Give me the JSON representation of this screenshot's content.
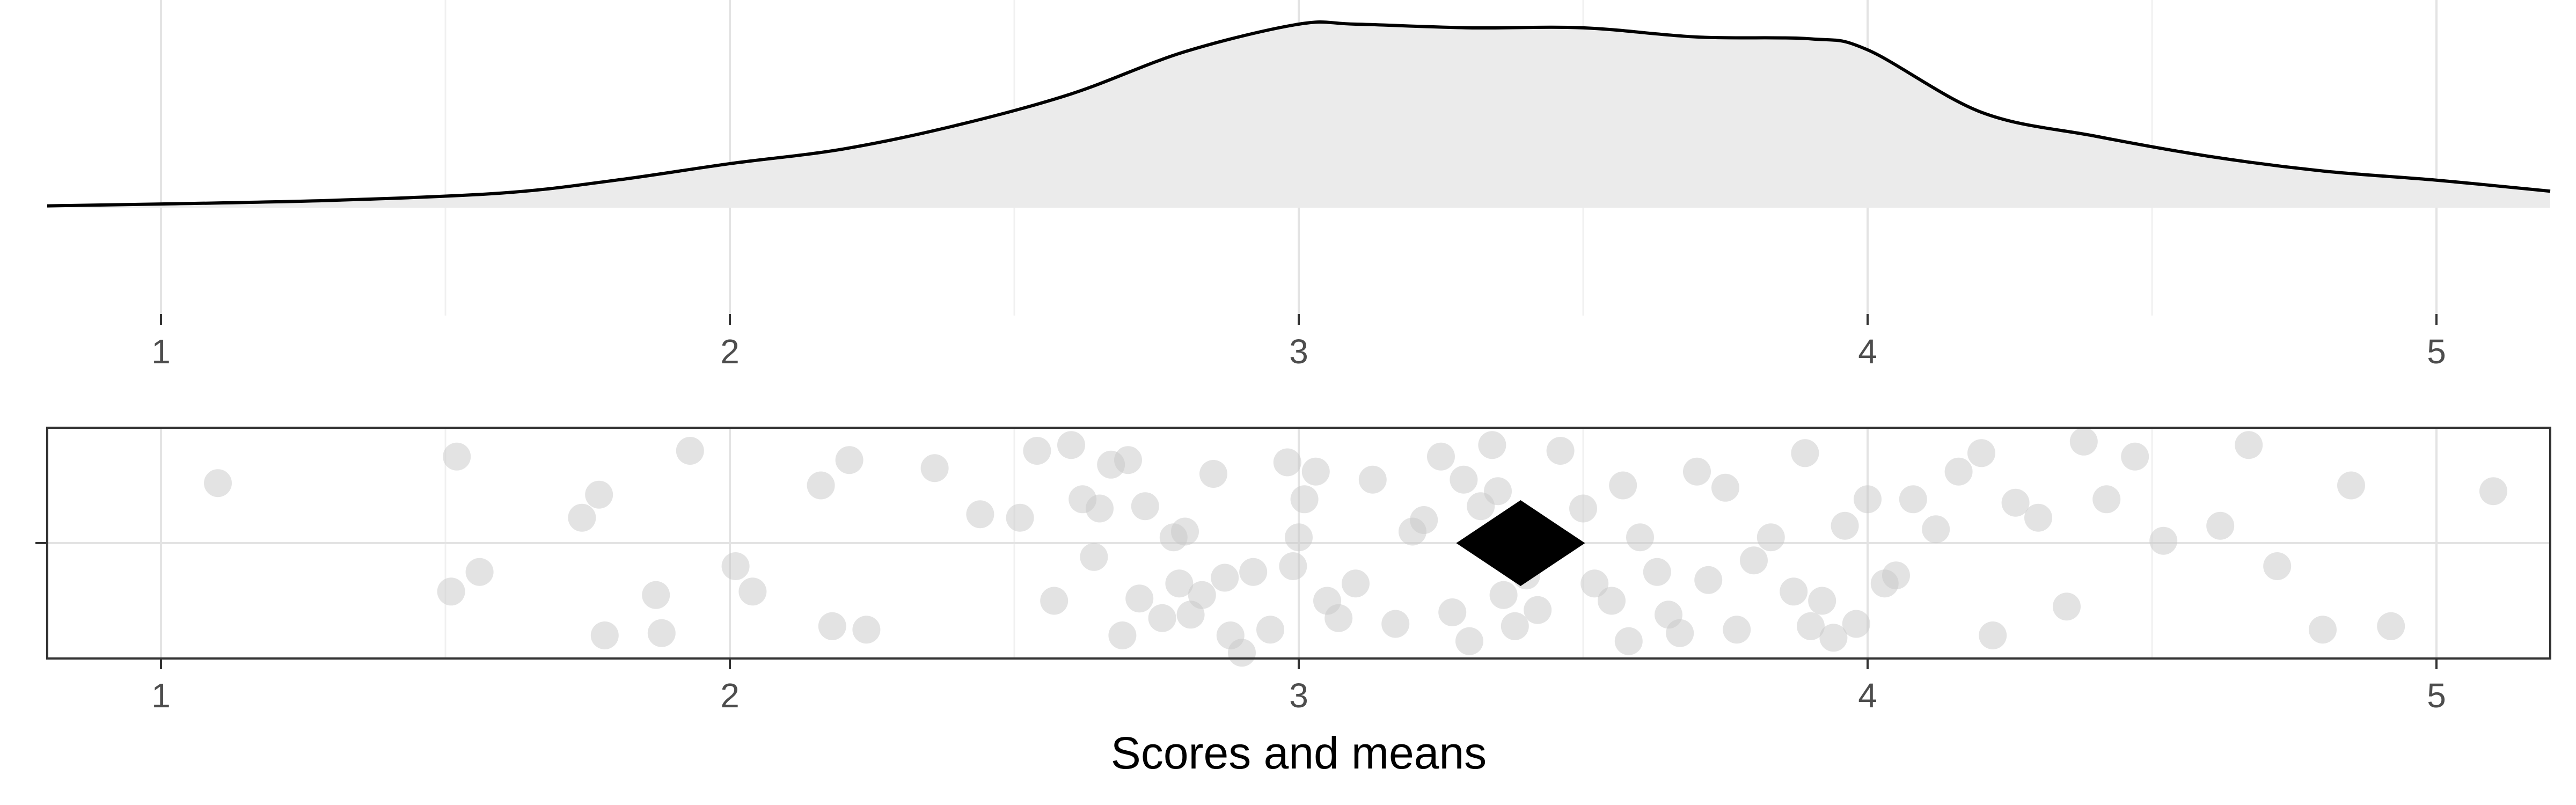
{
  "colors": {
    "density_fill": "#ebebeb",
    "density_line": "#000000",
    "point": "#c8c8c8",
    "mean_marker": "#000000",
    "grid_major": "#e3e3e3",
    "grid_minor": "#f0f0f0",
    "panel_border": "#333333",
    "tick_text": "#4d4d4d"
  },
  "chart_data": [
    {
      "type": "area",
      "xlim": [
        0.8,
        5.2
      ],
      "ylim": [
        0,
        1
      ],
      "grid": true,
      "xticks": [
        "1",
        "2",
        "3",
        "4",
        "5"
      ],
      "density": {
        "x": [
          0.8,
          1.0,
          1.3,
          1.6,
          1.8,
          2.0,
          2.2,
          2.4,
          2.6,
          2.8,
          3.0,
          3.1,
          3.3,
          3.5,
          3.7,
          3.9,
          4.0,
          4.2,
          4.4,
          4.6,
          4.8,
          5.0,
          5.2
        ],
        "y": [
          0.01,
          0.02,
          0.04,
          0.08,
          0.15,
          0.24,
          0.32,
          0.45,
          0.62,
          0.85,
          1.0,
          1.0,
          0.98,
          0.98,
          0.93,
          0.92,
          0.86,
          0.52,
          0.39,
          0.28,
          0.2,
          0.15,
          0.09
        ]
      }
    },
    {
      "type": "scatter",
      "xlim": [
        0.8,
        5.2
      ],
      "ylim": [
        -1,
        1
      ],
      "grid": true,
      "xticks": [
        "1",
        "2",
        "3",
        "4",
        "5"
      ],
      "xlabel": "Scores and means",
      "points": {
        "x": [
          1.1,
          1.52,
          1.51,
          1.56,
          1.74,
          1.77,
          1.78,
          1.87,
          1.88,
          1.93,
          2.01,
          2.04,
          2.16,
          2.18,
          2.21,
          2.24,
          2.36,
          2.44,
          2.51,
          2.54,
          2.57,
          2.6,
          2.62,
          2.64,
          2.65,
          2.67,
          2.69,
          2.7,
          2.72,
          2.73,
          2.76,
          2.78,
          2.79,
          2.8,
          2.81,
          2.83,
          2.85,
          2.87,
          2.88,
          2.9,
          2.92,
          2.95,
          2.98,
          2.99,
          3.0,
          3.01,
          3.03,
          3.05,
          3.07,
          3.1,
          3.13,
          3.17,
          3.2,
          3.22,
          3.25,
          3.27,
          3.29,
          3.3,
          3.32,
          3.34,
          3.35,
          3.36,
          3.38,
          3.4,
          3.42,
          3.46,
          3.5,
          3.52,
          3.55,
          3.57,
          3.58,
          3.6,
          3.63,
          3.65,
          3.67,
          3.7,
          3.72,
          3.75,
          3.77,
          3.8,
          3.83,
          3.87,
          3.89,
          3.9,
          3.92,
          3.94,
          3.96,
          3.98,
          4.0,
          4.03,
          4.05,
          4.08,
          4.12,
          4.16,
          4.2,
          4.22,
          4.26,
          4.3,
          4.35,
          4.38,
          4.42,
          4.47,
          4.52,
          4.62,
          4.67,
          4.72,
          4.8,
          4.85,
          4.92,
          5.1
        ],
        "y": [
          0.52,
          0.75,
          -0.42,
          -0.25,
          0.22,
          0.42,
          -0.8,
          -0.45,
          -0.78,
          0.8,
          -0.2,
          -0.42,
          0.5,
          -0.72,
          0.72,
          -0.75,
          0.65,
          0.25,
          0.22,
          0.8,
          -0.5,
          0.85,
          0.38,
          -0.12,
          0.3,
          0.68,
          -0.8,
          0.72,
          -0.48,
          0.32,
          -0.65,
          0.05,
          -0.35,
          0.1,
          -0.62,
          -0.45,
          0.6,
          -0.3,
          -0.8,
          -0.95,
          -0.25,
          -0.75,
          0.7,
          -0.2,
          0.05,
          0.38,
          0.62,
          -0.5,
          -0.65,
          -0.35,
          0.55,
          -0.7,
          0.1,
          0.2,
          0.75,
          -0.6,
          0.55,
          -0.85,
          0.32,
          0.85,
          0.45,
          -0.45,
          -0.72,
          -0.28,
          -0.58,
          0.8,
          0.3,
          -0.35,
          -0.5,
          0.5,
          -0.85,
          0.05,
          -0.25,
          -0.62,
          -0.78,
          0.62,
          -0.32,
          0.48,
          -0.75,
          -0.15,
          0.05,
          -0.42,
          0.78,
          -0.72,
          -0.5,
          -0.82,
          0.15,
          -0.7,
          0.38,
          -0.35,
          -0.28,
          0.38,
          0.12,
          0.62,
          0.78,
          -0.8,
          0.35,
          0.22,
          -0.55,
          0.88,
          0.38,
          0.75,
          0.02,
          0.15,
          0.85,
          -0.2,
          -0.75,
          0.5,
          -0.72,
          0.45
        ]
      },
      "mean": {
        "x": 3.39,
        "y": 0
      }
    }
  ]
}
